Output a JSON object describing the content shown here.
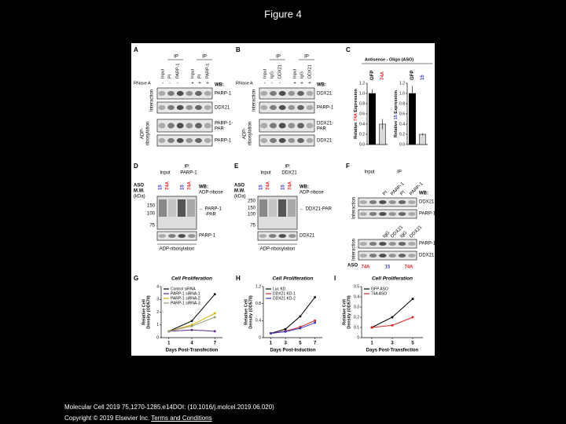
{
  "title": "Figure 4",
  "figure": {
    "A": {
      "letter": "A",
      "ip": [
        "IP",
        "IP"
      ],
      "lanes": [
        "Input",
        "PI",
        "PARP-1",
        "Input",
        "PI",
        "PARP-1"
      ],
      "rnase": "RNase A",
      "signs": [
        "-",
        "-",
        "-",
        "+",
        "+",
        "+"
      ],
      "wb": "WB:",
      "blots": [
        "PARP-1",
        "DDX21",
        "PARP-1-",
        "PAR",
        "PARP-1"
      ],
      "side": [
        "Interaction",
        "ADP-",
        "ribosylation"
      ]
    },
    "B": {
      "letter": "B",
      "ip": [
        "IP",
        "IP"
      ],
      "lanes": [
        "Input",
        "IgG",
        "DDX21",
        "Input",
        "IgG",
        "DDX21"
      ],
      "rnase": "RNase A",
      "signs": [
        "-",
        "-",
        "-",
        "+",
        "+",
        "+"
      ],
      "wb": "WB:",
      "blots": [
        "DDX21",
        "PARP-1",
        "DDX21-",
        "PAR",
        "DDX21"
      ],
      "side": [
        "Interaction",
        "ADP-",
        "ribosylation"
      ]
    },
    "C": {
      "letter": "C",
      "header": "Antisense - Oligo (ASO)",
      "charts": [
        {
          "type": "bar",
          "categories": [
            "GFP",
            "74A"
          ],
          "label_colors": [
            "#000000",
            "#e0242a"
          ],
          "colors": [
            "#000000",
            "#d9d9d9"
          ],
          "values": [
            1.0,
            0.4
          ],
          "errors": [
            0.08,
            0.1
          ],
          "ylim": [
            0,
            1.2
          ],
          "yticks": [
            {
              "value": 0,
              "label": "0.0"
            },
            0.2,
            0.4,
            0.6,
            0.8,
            {
              "value": 1,
              "label": "1.0"
            },
            1.2
          ],
          "ylabel": [
            "Relative ",
            "74A",
            " Expression"
          ],
          "ylabel_colors": [
            "#000000",
            "#e0242a",
            "#000000"
          ]
        },
        {
          "type": "bar",
          "categories": [
            "GFP",
            "15"
          ],
          "label_colors": [
            "#000000",
            "#3b3bc4"
          ],
          "colors": [
            "#000000",
            "#d9d9d9"
          ],
          "values": [
            1.0,
            0.2
          ],
          "errors": [
            0.15,
            0.02
          ],
          "ylim": [
            0,
            1.2
          ],
          "yticks": [
            {
              "value": 0,
              "label": "0.0"
            },
            0.2,
            0.4,
            0.6,
            0.8,
            {
              "value": 1,
              "label": "1.0"
            },
            1.2
          ],
          "ylabel": [
            "Relative ",
            "15",
            " Expression"
          ],
          "ylabel_colors": [
            "#000000",
            "#3b3bc4",
            "#000000"
          ]
        }
      ]
    },
    "D": {
      "letter": "D",
      "ip": "IP:",
      "groups": [
        "Input",
        "PARP-1"
      ],
      "aso": "ASO",
      "mw": [
        "M.W.",
        "(kDa)"
      ],
      "lanes": [
        "15",
        "74A",
        "15",
        "74A"
      ],
      "lane_colors": [
        "#3b3bc4",
        "#e0242a",
        "#3b3bc4",
        "#e0242a"
      ],
      "markers": [
        "150",
        "100",
        "75"
      ],
      "wb": [
        "WB:",
        "ADP-ribose"
      ],
      "band": [
        "← PARP-1",
        "-PAR"
      ],
      "lower": "PARP-1",
      "bottom": "ADP-ribosylation"
    },
    "E": {
      "letter": "E",
      "ip": "IP:",
      "groups": [
        "Input",
        "DDX21"
      ],
      "aso": "ASO",
      "mw": [
        "M.W.",
        "(kDa)"
      ],
      "lanes": [
        "15",
        "74A",
        "15",
        "74A"
      ],
      "lane_colors": [
        "#3b3bc4",
        "#e0242a",
        "#3b3bc4",
        "#e0242a"
      ],
      "markers": [
        "250",
        "150",
        "100",
        "75"
      ],
      "wb": [
        "WB:",
        "ADP-ribose"
      ],
      "band": [
        "← DDX21-PAR"
      ],
      "lower": "DDX21",
      "bottom": "ADP-ribosylation"
    },
    "F": {
      "letter": "F",
      "groups": [
        "Input",
        "IP"
      ],
      "lanes_top": [
        "PI",
        "PARP-1",
        "PI",
        "PARP-1"
      ],
      "wb": "WB:",
      "blots_top": [
        "DDX21",
        "PARP-1"
      ],
      "lanes_bottom": [
        "IgG",
        "DDX21",
        "IgG",
        "DDX21"
      ],
      "blots_bottom": [
        "PARP-1",
        "DDX21"
      ],
      "side": [
        "Interaction",
        "Interaction"
      ],
      "aso": "ASO",
      "aso_lanes": [
        "74A",
        "15",
        "74A"
      ],
      "aso_colors": [
        "#e0242a",
        "#3b3bc4",
        "#e0242a"
      ]
    },
    "G": {
      "letter": "G",
      "type": "line",
      "title": "Cell Proliferation",
      "ylabel": [
        "Relative Cell",
        "Density (OD570)"
      ],
      "xlabel": "Days Post-Transfection",
      "x": [
        1,
        4,
        7
      ],
      "xlim": [
        0,
        8
      ],
      "xticks": [
        1,
        4,
        7
      ],
      "ylim": [
        0,
        4
      ],
      "yticks": [
        0,
        1,
        2,
        3,
        4
      ],
      "series": [
        {
          "name": "Control siRNA",
          "color": "#000000",
          "values": [
            0.5,
            1.3,
            3.4
          ]
        },
        {
          "name": "PARP-1 siRNA-1",
          "color": "#5b2c8f",
          "values": [
            0.5,
            0.6,
            0.5
          ]
        },
        {
          "name": "PARP-1 siRNA-2",
          "color": "#d4b106",
          "values": [
            0.5,
            1.0,
            1.9
          ]
        },
        {
          "name": "PARP-1 siRNA-3",
          "color": "#9a9a7a",
          "values": [
            0.5,
            0.9,
            1.6
          ]
        }
      ]
    },
    "H": {
      "letter": "H",
      "type": "line",
      "title": "Cell Proliferation",
      "ylabel": [
        "Relative Cell",
        "Density (OD570)"
      ],
      "xlabel": "Days Post-Induction",
      "x": [
        1,
        3,
        5,
        7
      ],
      "xlim": [
        0,
        8
      ],
      "xticks": [
        1,
        3,
        5,
        7
      ],
      "ylim": [
        0,
        1.2
      ],
      "yticks": [
        0,
        0.4,
        0.8,
        1.2
      ],
      "series": [
        {
          "name": "Luc KD",
          "color": "#000000",
          "values": [
            0.1,
            0.2,
            0.5,
            0.95
          ]
        },
        {
          "name": "DDX21 KD-1",
          "color": "#d22222",
          "values": [
            0.1,
            0.15,
            0.25,
            0.4
          ]
        },
        {
          "name": "DDX21 KD-2",
          "color": "#3a3acf",
          "values": [
            0.1,
            0.14,
            0.22,
            0.35
          ]
        }
      ]
    },
    "I": {
      "letter": "I",
      "type": "line",
      "title": "Cell Proliferation",
      "ylabel": [
        "Relative Cell",
        "Density (OD570)"
      ],
      "xlabel": "Days Post-Transfection",
      "x": [
        1,
        3,
        5
      ],
      "xlim": [
        0,
        6
      ],
      "xticks": [
        1,
        3,
        5
      ],
      "ylim": [
        0,
        0.5
      ],
      "yticks": [
        0,
        0.1,
        0.2,
        0.3,
        0.4,
        0.5
      ],
      "series": [
        {
          "name": "GFP ASO",
          "color": "#000000",
          "values": [
            0.1,
            0.2,
            0.38
          ]
        },
        {
          "name": "74A ASO",
          "color": "#d22222",
          "values": [
            0.1,
            0.12,
            0.2
          ]
        }
      ]
    }
  },
  "footer": {
    "citation": "Molecular Cell 2019 75,1270-1285.e14DOI: (10.1016/j.molcel.2019.06.020)",
    "copyright": "Copyright © 2019 Elsevier Inc. ",
    "link": "Terms and Conditions"
  }
}
